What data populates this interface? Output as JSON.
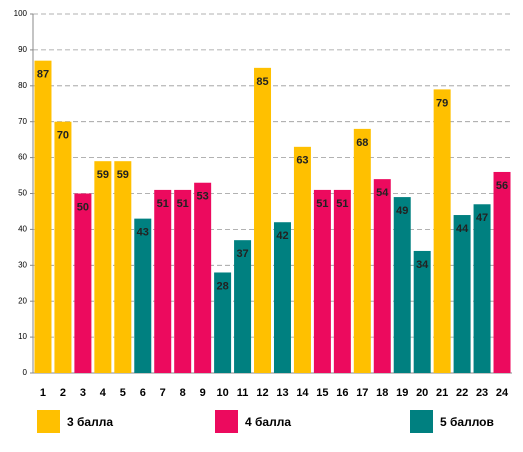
{
  "chart_data": {
    "type": "bar",
    "categories": [
      "1",
      "2",
      "3",
      "4",
      "5",
      "6",
      "7",
      "8",
      "9",
      "10",
      "11",
      "12",
      "13",
      "14",
      "15",
      "16",
      "17",
      "18",
      "19",
      "20",
      "21",
      "22",
      "23",
      "24"
    ],
    "series": [
      {
        "name": "3 балла",
        "color": "#FFC000",
        "values": [
          87,
          70,
          null,
          59,
          59,
          null,
          null,
          null,
          null,
          null,
          null,
          85,
          null,
          63,
          null,
          null,
          68,
          null,
          null,
          null,
          79,
          null,
          null,
          null
        ]
      },
      {
        "name": "4 балла",
        "color": "#EC0A5E",
        "values": [
          null,
          null,
          50,
          null,
          null,
          null,
          51,
          51,
          53,
          null,
          null,
          null,
          null,
          null,
          51,
          51,
          null,
          54,
          null,
          null,
          null,
          null,
          null,
          56
        ]
      },
      {
        "name": "5 баллов",
        "color": "#008080",
        "values": [
          null,
          null,
          null,
          null,
          null,
          43,
          null,
          null,
          null,
          28,
          37,
          null,
          42,
          null,
          null,
          null,
          null,
          null,
          49,
          34,
          null,
          44,
          47,
          null
        ]
      }
    ],
    "ylim": [
      0,
      100
    ],
    "yticks": [
      0,
      10,
      20,
      30,
      40,
      50,
      60,
      70,
      80,
      90,
      100
    ],
    "grid": true,
    "legend": "bottom"
  }
}
